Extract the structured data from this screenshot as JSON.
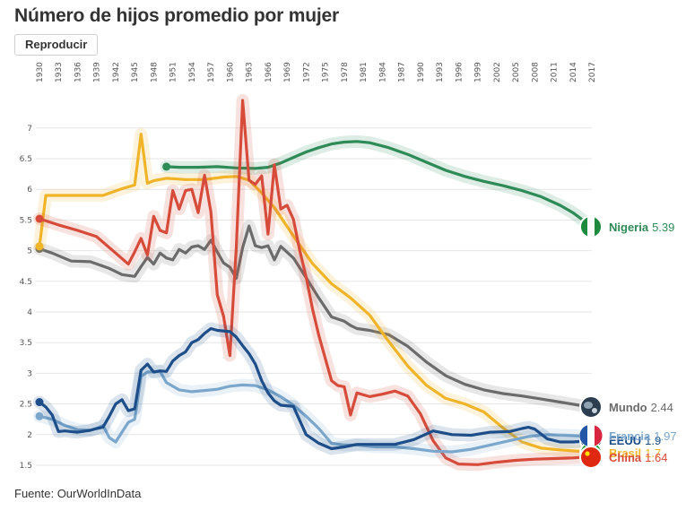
{
  "title": "Número de hijos promedio por mujer",
  "play_button": "Reproducir",
  "source": "Fuente: OurWorldInData",
  "chart_data": {
    "type": "line",
    "title": "Número de hijos promedio por mujer",
    "xlabel": "",
    "ylabel": "",
    "xlim": [
      1930,
      2017
    ],
    "ylim": [
      1.5,
      7.5
    ],
    "x_ticks": [
      "1930",
      "1933",
      "1936",
      "1939",
      "1942",
      "1945",
      "1948",
      "1951",
      "1954",
      "1957",
      "1960",
      "1963",
      "1966",
      "1969",
      "1972",
      "1975",
      "1978",
      "1981",
      "1984",
      "1987",
      "1990",
      "1993",
      "1996",
      "1999",
      "2002",
      "2005",
      "2008",
      "2011",
      "2014",
      "2017"
    ],
    "y_ticks": [
      "1.5",
      "2",
      "2.5",
      "3",
      "3.5",
      "4",
      "4.5",
      "5",
      "5.5",
      "6",
      "6.5",
      "7"
    ],
    "grid": true,
    "legend": "end-of-line labels",
    "series": [
      {
        "name": "Nigeria",
        "end_value": "5.39",
        "color": "#2e8b57",
        "flag_icon": "nigeria-flag",
        "x": [
          1950,
          1952,
          1955,
          1958,
          1961,
          1964,
          1966,
          1968,
          1970,
          1972,
          1974,
          1976,
          1978,
          1980,
          1982,
          1985,
          1988,
          1991,
          1994,
          1997,
          2000,
          2003,
          2006,
          2009,
          2012,
          2014,
          2017
        ],
        "y": [
          6.37,
          6.36,
          6.36,
          6.37,
          6.35,
          6.34,
          6.36,
          6.43,
          6.52,
          6.61,
          6.68,
          6.74,
          6.77,
          6.78,
          6.76,
          6.68,
          6.57,
          6.44,
          6.31,
          6.21,
          6.13,
          6.06,
          5.98,
          5.88,
          5.74,
          5.62,
          5.39
        ]
      },
      {
        "name": "Mundo",
        "end_value": "2.44",
        "color": "#6b6b6b",
        "flag_icon": "globe-icon",
        "x": [
          1930,
          1932,
          1935,
          1938,
          1941,
          1943,
          1945,
          1946,
          1947,
          1948,
          1949,
          1950,
          1951,
          1952,
          1953,
          1954,
          1955,
          1956,
          1957,
          1958,
          1959,
          1960,
          1961,
          1962,
          1963,
          1964,
          1965,
          1966,
          1967,
          1968,
          1970,
          1972,
          1974,
          1976,
          1978,
          1979,
          1980,
          1982,
          1985,
          1988,
          1991,
          1994,
          1997,
          2000,
          2003,
          2006,
          2009,
          2012,
          2015,
          2017
        ],
        "y": [
          5.03,
          4.96,
          4.83,
          4.82,
          4.71,
          4.61,
          4.58,
          4.74,
          4.89,
          4.78,
          4.96,
          4.88,
          4.85,
          5.02,
          4.96,
          5.06,
          5.08,
          5.02,
          5.17,
          4.98,
          4.8,
          4.73,
          4.55,
          5.05,
          5.4,
          5.08,
          5.05,
          5.08,
          4.85,
          5.07,
          4.88,
          4.56,
          4.23,
          3.92,
          3.85,
          3.78,
          3.73,
          3.7,
          3.63,
          3.44,
          3.18,
          2.96,
          2.82,
          2.73,
          2.67,
          2.63,
          2.58,
          2.53,
          2.48,
          2.44
        ]
      },
      {
        "name": "Brasil",
        "end_value": "1.7",
        "color": "#f0b429",
        "flag_icon": "brazil-flag",
        "x": [
          1930,
          1931,
          1935,
          1940,
          1943,
          1945,
          1946,
          1947,
          1948,
          1950,
          1953,
          1956,
          1959,
          1961,
          1963,
          1965,
          1967,
          1970,
          1973,
          1976,
          1979,
          1982,
          1985,
          1988,
          1991,
          1994,
          1997,
          2000,
          2003,
          2006,
          2009,
          2012,
          2015,
          2017
        ],
        "y": [
          5.07,
          5.9,
          5.9,
          5.9,
          6.01,
          6.07,
          6.9,
          6.1,
          6.14,
          6.18,
          6.16,
          6.16,
          6.2,
          6.21,
          6.15,
          5.94,
          5.7,
          5.24,
          4.79,
          4.46,
          4.23,
          3.95,
          3.52,
          3.12,
          2.8,
          2.59,
          2.5,
          2.37,
          2.11,
          1.88,
          1.78,
          1.75,
          1.73,
          1.7
        ]
      },
      {
        "name": "China",
        "end_value": "1.64",
        "color": "#d64b3a",
        "flag_icon": "china-flag",
        "x": [
          1930,
          1933,
          1936,
          1939,
          1942,
          1944,
          1945,
          1946,
          1947,
          1948,
          1949,
          1950,
          1951,
          1952,
          1953,
          1954,
          1955,
          1956,
          1957,
          1958,
          1959,
          1960,
          1961,
          1962,
          1963,
          1964,
          1965,
          1966,
          1967,
          1968,
          1969,
          1970,
          1971,
          1972,
          1973,
          1974,
          1975,
          1976,
          1977,
          1978,
          1979,
          1980,
          1982,
          1984,
          1986,
          1988,
          1990,
          1992,
          1994,
          1996,
          1999,
          2002,
          2005,
          2008,
          2011,
          2014,
          2017
        ],
        "y": [
          5.52,
          5.42,
          5.33,
          5.23,
          4.96,
          4.78,
          4.98,
          5.2,
          4.93,
          5.56,
          5.33,
          5.29,
          5.98,
          5.68,
          5.98,
          6.0,
          5.62,
          6.23,
          5.63,
          4.28,
          3.93,
          3.29,
          5.05,
          7.45,
          6.15,
          6.08,
          6.22,
          5.27,
          6.4,
          5.68,
          5.74,
          5.51,
          5.0,
          4.57,
          4.05,
          3.62,
          3.25,
          2.88,
          2.8,
          2.78,
          2.32,
          2.68,
          2.62,
          2.66,
          2.71,
          2.63,
          2.34,
          1.9,
          1.62,
          1.52,
          1.51,
          1.55,
          1.58,
          1.6,
          1.61,
          1.62,
          1.64
        ]
      },
      {
        "name": "Francia",
        "end_value": "1.97",
        "color": "#7ba7cc",
        "flag_icon": "france-flag",
        "x": [
          1930,
          1932,
          1934,
          1936,
          1938,
          1939,
          1940,
          1941,
          1942,
          1944,
          1945,
          1946,
          1947,
          1949,
          1950,
          1952,
          1954,
          1956,
          1958,
          1960,
          1962,
          1964,
          1966,
          1968,
          1970,
          1972,
          1974,
          1976,
          1978,
          1980,
          1983,
          1986,
          1989,
          1992,
          1995,
          1998,
          2001,
          2004,
          2007,
          2010,
          2013,
          2017
        ],
        "y": [
          2.3,
          2.25,
          2.15,
          2.08,
          2.07,
          2.1,
          2.15,
          1.95,
          1.88,
          2.2,
          2.25,
          2.95,
          3.02,
          3.03,
          2.85,
          2.73,
          2.7,
          2.72,
          2.74,
          2.79,
          2.81,
          2.8,
          2.73,
          2.62,
          2.48,
          2.3,
          2.1,
          1.86,
          1.83,
          1.83,
          1.8,
          1.8,
          1.77,
          1.73,
          1.72,
          1.76,
          1.83,
          1.9,
          1.97,
          2.0,
          1.99,
          1.97
        ]
      },
      {
        "name": "EEUU",
        "end_value": "1.9",
        "color": "#1d4e89",
        "flag_icon": "usa-flag",
        "x": [
          1930,
          1931,
          1932,
          1933,
          1934,
          1936,
          1938,
          1939,
          1940,
          1941,
          1942,
          1943,
          1944,
          1945,
          1946,
          1947,
          1948,
          1949,
          1950,
          1951,
          1952,
          1953,
          1954,
          1955,
          1956,
          1957,
          1958,
          1960,
          1961,
          1962,
          1963,
          1964,
          1965,
          1966,
          1967,
          1968,
          1970,
          1972,
          1974,
          1976,
          1978,
          1980,
          1983,
          1986,
          1989,
          1992,
          1995,
          1998,
          2001,
          2004,
          2006,
          2007,
          2008,
          2010,
          2012,
          2014,
          2017
        ],
        "y": [
          2.53,
          2.45,
          2.32,
          2.05,
          2.06,
          2.04,
          2.07,
          2.1,
          2.12,
          2.3,
          2.5,
          2.57,
          2.39,
          2.42,
          3.05,
          3.15,
          3.02,
          3.04,
          3.03,
          3.2,
          3.29,
          3.35,
          3.5,
          3.55,
          3.65,
          3.73,
          3.7,
          3.68,
          3.59,
          3.45,
          3.32,
          3.15,
          2.88,
          2.68,
          2.55,
          2.48,
          2.46,
          2.0,
          1.86,
          1.77,
          1.8,
          1.84,
          1.84,
          1.84,
          1.92,
          2.06,
          2.0,
          1.99,
          2.04,
          2.05,
          2.1,
          2.12,
          2.09,
          1.93,
          1.88,
          1.88,
          1.9
        ]
      }
    ]
  }
}
